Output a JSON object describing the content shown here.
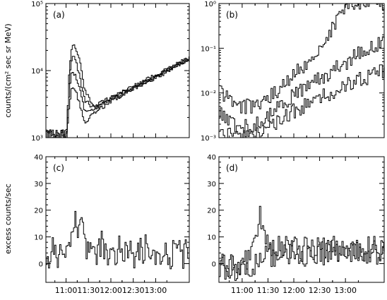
{
  "chart_data": [
    {
      "type": "line",
      "panel_label": "(a)",
      "ylabel": "counts/(cm² sec sr MeV)",
      "xlim": [
        10.55,
        13.75
      ],
      "ylim": [
        1000,
        100000
      ],
      "yscale": "log",
      "x_tick_labels": [],
      "y_tick_labels": [
        "10³",
        "10⁴",
        "10⁵"
      ],
      "series": [
        {
          "x": [
            10.55,
            10.9,
            11.0,
            11.05,
            11.12,
            11.2,
            11.28,
            11.4,
            11.6,
            12.0,
            12.4,
            12.8,
            13.2,
            13.5,
            13.7
          ],
          "y": [
            1050,
            1050,
            1100,
            8000,
            25000,
            22000,
            16000,
            5000,
            3000,
            4000,
            5500,
            7500,
            10000,
            13000,
            15000
          ]
        },
        {
          "x": [
            10.55,
            10.9,
            11.0,
            11.05,
            11.12,
            11.2,
            11.28,
            11.4,
            11.6,
            12.0,
            12.4,
            12.8,
            13.2,
            13.5,
            13.7
          ],
          "y": [
            1000,
            1000,
            1050,
            6000,
            17000,
            14000,
            9000,
            3600,
            2800,
            3900,
            5300,
            7200,
            9800,
            12500,
            14500
          ]
        },
        {
          "x": [
            10.55,
            10.9,
            11.0,
            11.05,
            11.12,
            11.2,
            11.3,
            11.4,
            11.6,
            12.0,
            12.4,
            12.8,
            13.2,
            13.5,
            13.7
          ],
          "y": [
            1000,
            1000,
            1050,
            4000,
            10000,
            8500,
            5000,
            2500,
            2600,
            3700,
            5100,
            7000,
            9500,
            12200,
            14200
          ]
        },
        {
          "x": [
            10.55,
            10.9,
            11.0,
            11.05,
            11.12,
            11.2,
            11.3,
            11.4,
            11.6,
            12.0,
            12.4,
            12.8,
            13.2,
            13.5,
            13.7
          ],
          "y": [
            1000,
            1000,
            1020,
            2500,
            6000,
            5000,
            3000,
            1600,
            2300,
            3500,
            5000,
            6800,
            9300,
            12000,
            14000
          ]
        }
      ]
    },
    {
      "type": "line",
      "panel_label": "(b)",
      "xlim": [
        10.55,
        13.75
      ],
      "ylim": [
        0.001,
        1
      ],
      "yscale": "log",
      "x_tick_labels": [],
      "y_tick_labels": [
        "10⁻³",
        "10⁻²",
        "10⁻¹",
        "10⁰"
      ],
      "series": [
        {
          "x": [
            10.55,
            10.8,
            11.0,
            11.2,
            11.4,
            11.6,
            11.8,
            12.0,
            12.2,
            12.4,
            12.6,
            12.8,
            13.0
          ],
          "y": [
            0.012,
            0.006,
            0.005,
            0.005,
            0.007,
            0.01,
            0.015,
            0.025,
            0.045,
            0.08,
            0.16,
            0.35,
            1.0
          ]
        },
        {
          "x": [
            10.55,
            10.8,
            11.0,
            11.2,
            11.4,
            11.6,
            11.8,
            12.0,
            12.3,
            12.6,
            12.9,
            13.2,
            13.5,
            13.7
          ],
          "y": [
            0.004,
            0.002,
            0.0018,
            0.0018,
            0.0025,
            0.004,
            0.006,
            0.009,
            0.015,
            0.025,
            0.04,
            0.07,
            0.11,
            0.14
          ]
        },
        {
          "x": [
            10.55,
            10.8,
            11.0,
            11.2,
            11.4,
            11.6,
            11.8,
            12.0,
            12.3,
            12.6,
            12.9,
            13.2,
            13.5,
            13.7
          ],
          "y": [
            0.0015,
            0.0012,
            0.001,
            0.0011,
            0.0014,
            0.002,
            0.003,
            0.004,
            0.006,
            0.009,
            0.013,
            0.018,
            0.025,
            0.03
          ]
        }
      ]
    },
    {
      "type": "line",
      "panel_label": "(c)",
      "ylabel": "excess counts/sec",
      "xlim": [
        10.55,
        13.75
      ],
      "ylim": [
        -7,
        40
      ],
      "x_tick_labels": [
        "11:00",
        "11:30",
        "12:00",
        "12:30",
        "13:00"
      ],
      "y_tick_labels": [
        "0",
        "10",
        "20",
        "30",
        "40"
      ],
      "series": [
        {
          "x": [
            10.6,
            10.7,
            10.8,
            10.9,
            11.0,
            11.1,
            11.2,
            11.25,
            11.3,
            11.4,
            11.5,
            11.6,
            11.7,
            11.8,
            11.9,
            12.0,
            12.1,
            12.2,
            12.3,
            12.4,
            12.5,
            12.6,
            12.7,
            12.8,
            12.9,
            13.0,
            13.1,
            13.2,
            13.3,
            13.4,
            13.5,
            13.6,
            13.7
          ],
          "y": [
            3,
            6,
            1,
            8,
            3,
            10,
            15,
            13,
            18,
            8,
            2,
            6,
            3,
            9,
            2,
            5,
            1,
            7,
            3,
            8,
            2,
            6,
            4,
            7,
            2,
            5,
            3,
            6,
            2,
            5,
            4,
            3,
            5
          ]
        }
      ]
    },
    {
      "type": "line",
      "panel_label": "(d)",
      "xlim": [
        10.55,
        13.75
      ],
      "ylim": [
        -7,
        40
      ],
      "x_tick_labels": [
        "11:00",
        "11:30",
        "12:00",
        "12:30",
        "13:00"
      ],
      "y_tick_labels": [
        "0",
        "10",
        "20",
        "30",
        "40"
      ],
      "series": [
        {
          "x": [
            10.6,
            10.7,
            10.8,
            10.9,
            11.0,
            11.1,
            11.2,
            11.3,
            11.35,
            11.4,
            11.5,
            11.6,
            11.8,
            12.0,
            12.2,
            12.4,
            12.6,
            12.8,
            13.0,
            13.2,
            13.4,
            13.6,
            13.7
          ],
          "y": [
            -2,
            0,
            -1,
            1,
            0,
            3,
            8,
            15,
            18,
            10,
            5,
            2,
            4,
            5,
            4,
            5,
            4,
            5,
            4,
            5,
            4,
            4,
            5
          ]
        },
        {
          "x": [
            10.6,
            10.7,
            10.8,
            10.9,
            11.0,
            11.1,
            11.2,
            11.3,
            11.4,
            11.5,
            11.6,
            11.8,
            12.0,
            12.2,
            12.4,
            12.6,
            12.8,
            13.0,
            13.2,
            13.4,
            13.6,
            13.7
          ],
          "y": [
            -1,
            -2,
            0,
            -3,
            -1,
            -2,
            0,
            2,
            4,
            7,
            6,
            5,
            6,
            5,
            4,
            5,
            6,
            5,
            4,
            6,
            5,
            5
          ]
        }
      ]
    }
  ]
}
